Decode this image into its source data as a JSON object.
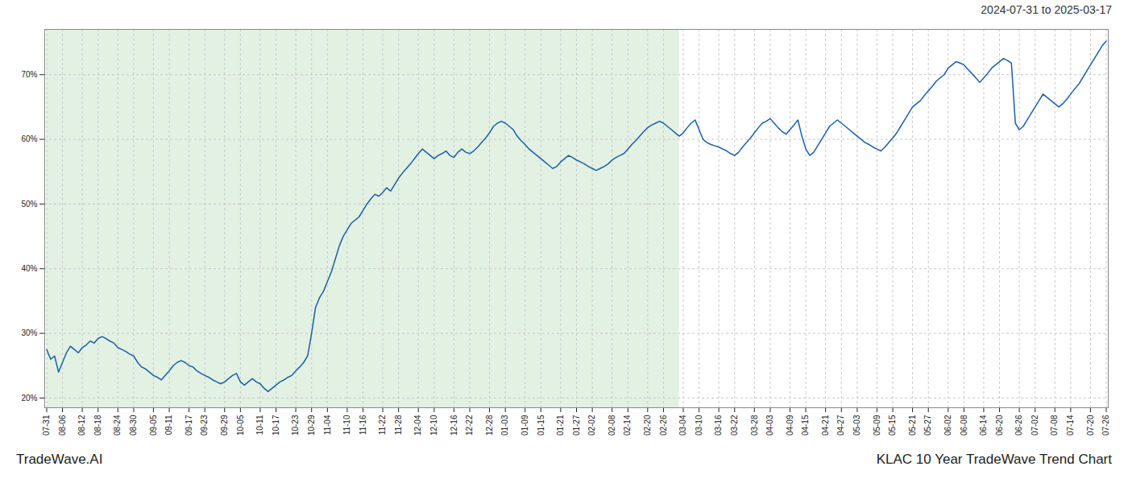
{
  "chart_data": {
    "type": "line",
    "title": "KLAC 10 Year TradeWave Trend Chart",
    "subtitle": "2024-07-31 to 2025-03-17",
    "annotations": [
      "TradeWave.AI"
    ],
    "color": "#1a5fa8",
    "grid": true,
    "ylim": [
      18.5,
      77
    ],
    "yticks": [
      {
        "value": 20,
        "label": "20%"
      },
      {
        "value": 30,
        "label": "30%"
      },
      {
        "value": 40,
        "label": "40%"
      },
      {
        "value": 50,
        "label": "50%"
      },
      {
        "value": 60,
        "label": "60%"
      },
      {
        "value": 70,
        "label": "70%"
      }
    ],
    "shaded_region": {
      "start": 0,
      "end": 160,
      "color": "#ddeedd"
    },
    "categories": [
      "07-31",
      null,
      null,
      null,
      "08-06",
      null,
      null,
      null,
      null,
      "08-12",
      null,
      null,
      null,
      "08-18",
      null,
      null,
      null,
      null,
      "08-24",
      null,
      null,
      null,
      "08-30",
      null,
      null,
      null,
      null,
      "09-05",
      null,
      null,
      null,
      "09-11",
      null,
      null,
      null,
      null,
      "09-17",
      null,
      null,
      null,
      "09-23",
      null,
      null,
      null,
      null,
      "09-29",
      null,
      null,
      null,
      "10-05",
      null,
      null,
      null,
      null,
      "10-11",
      null,
      null,
      null,
      "10-17",
      null,
      null,
      null,
      null,
      "10-23",
      null,
      null,
      null,
      "10-29",
      null,
      null,
      null,
      "11-04",
      null,
      null,
      null,
      null,
      "11-10",
      null,
      null,
      null,
      "11-16",
      null,
      null,
      null,
      null,
      "11-22",
      null,
      null,
      null,
      "11-28",
      null,
      null,
      null,
      null,
      "12-04",
      null,
      null,
      null,
      "12-10",
      null,
      null,
      null,
      null,
      "12-16",
      null,
      null,
      null,
      "12-22",
      null,
      null,
      null,
      null,
      "12-28",
      null,
      null,
      null,
      "01-03",
      null,
      null,
      null,
      null,
      "01-09",
      null,
      null,
      null,
      "01-15",
      null,
      null,
      null,
      null,
      "01-21",
      null,
      null,
      null,
      "01-27",
      null,
      null,
      null,
      "02-02",
      null,
      null,
      null,
      null,
      "02-08",
      null,
      null,
      null,
      "02-14",
      null,
      null,
      null,
      null,
      "02-20",
      null,
      null,
      null,
      "02-26",
      null,
      null,
      null,
      null,
      "03-04",
      null,
      null,
      null,
      "03-10",
      null,
      null,
      null,
      null,
      "03-16",
      null,
      null,
      null,
      "03-22",
      null,
      null,
      null,
      null,
      "03-28",
      null,
      null,
      null,
      "04-03",
      null,
      null,
      null,
      null,
      "04-09",
      null,
      null,
      null,
      "04-15",
      null,
      null,
      null,
      null,
      "04-21",
      null,
      null,
      null,
      "04-27",
      null,
      null,
      null,
      "05-03",
      null,
      null,
      null,
      null,
      "05-09",
      null,
      null,
      null,
      "05-15",
      null,
      null,
      null,
      null,
      "05-21",
      null,
      null,
      null,
      "05-27",
      null,
      null,
      null,
      null,
      "06-02",
      null,
      null,
      null,
      "06-08",
      null,
      null,
      null,
      null,
      "06-14",
      null,
      null,
      null,
      "06-20",
      null,
      null,
      null,
      null,
      "06-26",
      null,
      null,
      null,
      "07-02",
      null,
      null,
      null,
      null,
      "07-08",
      null,
      null,
      null,
      "07-14",
      null,
      null,
      null,
      null,
      "07-20",
      null,
      null,
      null,
      "07-26"
    ],
    "values": [
      27.5,
      26.0,
      26.5,
      24.0,
      25.5,
      27.0,
      28.0,
      27.5,
      27.0,
      27.8,
      28.2,
      28.8,
      28.5,
      29.2,
      29.5,
      29.2,
      28.8,
      28.5,
      27.8,
      27.5,
      27.2,
      26.8,
      26.5,
      25.5,
      24.8,
      24.5,
      24.0,
      23.5,
      23.2,
      22.8,
      23.5,
      24.2,
      25.0,
      25.5,
      25.8,
      25.5,
      25.0,
      24.8,
      24.2,
      23.8,
      23.5,
      23.2,
      22.8,
      22.5,
      22.2,
      22.5,
      23.0,
      23.5,
      23.8,
      22.5,
      22.0,
      22.5,
      23.0,
      22.5,
      22.2,
      21.5,
      21.0,
      21.5,
      22.0,
      22.5,
      22.8,
      23.2,
      23.5,
      24.2,
      24.8,
      25.5,
      26.5,
      30.0,
      34.0,
      35.5,
      36.5,
      38.0,
      39.5,
      41.5,
      43.5,
      45.0,
      46.0,
      47.0,
      47.5,
      48.0,
      49.0,
      50.0,
      50.8,
      51.5,
      51.2,
      51.8,
      52.5,
      52.0,
      53.0,
      54.0,
      54.8,
      55.5,
      56.2,
      57.0,
      57.8,
      58.5,
      58.0,
      57.5,
      57.0,
      57.5,
      57.8,
      58.2,
      57.5,
      57.2,
      58.0,
      58.5,
      58.0,
      57.8,
      58.2,
      58.8,
      59.5,
      60.2,
      61.0,
      62.0,
      62.5,
      62.8,
      62.5,
      62.0,
      61.5,
      60.5,
      59.8,
      59.2,
      58.5,
      58.0,
      57.5,
      57.0,
      56.5,
      56.0,
      55.5,
      55.8,
      56.5,
      57.0,
      57.5,
      57.2,
      56.8,
      56.5,
      56.2,
      55.8,
      55.5,
      55.2,
      55.5,
      55.8,
      56.2,
      56.8,
      57.2,
      57.5,
      57.8,
      58.5,
      59.2,
      59.8,
      60.5,
      61.2,
      61.8,
      62.2,
      62.5,
      62.8,
      62.5,
      62.0,
      61.5,
      61.0,
      60.5,
      61.0,
      61.8,
      62.5,
      63.0,
      61.5,
      60.0,
      59.5,
      59.2,
      59.0,
      58.8,
      58.5,
      58.2,
      57.8,
      57.5,
      58.0,
      58.8,
      59.5,
      60.2,
      61.0,
      61.8,
      62.5,
      62.8,
      63.2,
      62.5,
      61.8,
      61.2,
      60.8,
      61.5,
      62.2,
      63.0,
      60.5,
      58.5,
      57.5,
      58.0,
      59.0,
      60.0,
      61.0,
      62.0,
      62.5,
      63.0,
      62.5,
      62.0,
      61.5,
      61.0,
      60.5,
      60.0,
      59.5,
      59.2,
      58.8,
      58.5,
      58.2,
      58.8,
      59.5,
      60.2,
      61.0,
      62.0,
      63.0,
      64.0,
      65.0,
      65.5,
      66.0,
      66.8,
      67.5,
      68.2,
      69.0,
      69.5,
      70.0,
      71.0,
      71.5,
      72.0,
      71.8,
      71.5,
      70.8,
      70.2,
      69.5,
      68.8,
      69.5,
      70.2,
      71.0,
      71.5,
      72.0,
      72.5,
      72.2,
      71.8,
      62.5,
      61.5,
      62.0,
      63.0,
      64.0,
      65.0,
      66.0,
      67.0,
      66.5,
      66.0,
      65.5,
      65.0,
      65.5,
      66.2,
      67.0,
      67.8,
      68.5,
      69.5,
      70.5,
      71.5,
      72.5,
      73.5,
      74.5,
      75.2
    ]
  }
}
